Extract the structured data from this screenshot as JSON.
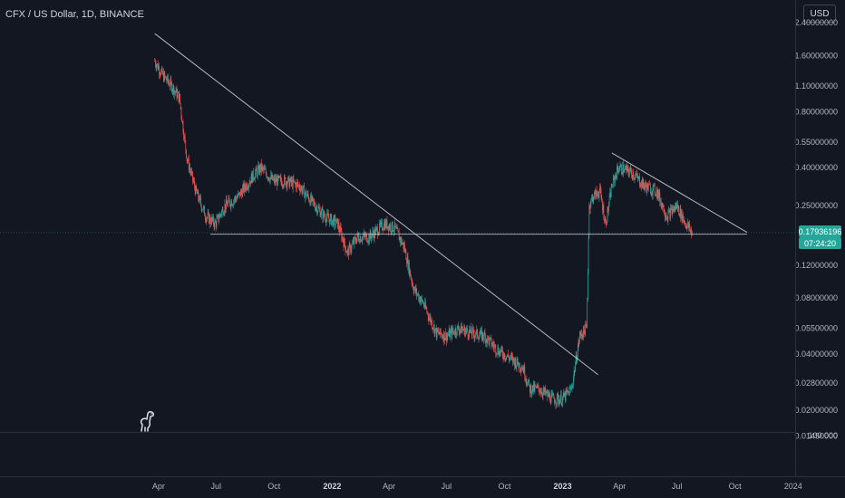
{
  "header": {
    "symbol_title": "CFX / US Dollar, 1D, BINANCE",
    "currency_button": "USD"
  },
  "price_tag": {
    "value": "0.17936196",
    "countdown": "07:24:20",
    "color": "#26a69a"
  },
  "colors": {
    "background": "#131722",
    "up": "#26a69a",
    "down": "#ef5350",
    "trendline": "#d1d4dc"
  },
  "icons": {
    "logo": "dinosaur-icon"
  },
  "chart_data": {
    "type": "candlestick",
    "scale": "log",
    "y_ticks": [
      "2.40000000",
      "1.60000000",
      "1.10000000",
      "0.80000000",
      "0.55000000",
      "0.40000000",
      "0.25000000",
      "0.12000000",
      "0.08000000",
      "0.05500000",
      "0.04000000",
      "0.02800000",
      "0.02000000",
      "0.01450000"
    ],
    "volume_label": "100.000",
    "x_ticks": [
      {
        "label": "Apr",
        "bold": false
      },
      {
        "label": "Jul",
        "bold": false
      },
      {
        "label": "Oct",
        "bold": false
      },
      {
        "label": "2022",
        "bold": true
      },
      {
        "label": "Apr",
        "bold": false
      },
      {
        "label": "Jul",
        "bold": false
      },
      {
        "label": "Oct",
        "bold": false
      },
      {
        "label": "2023",
        "bold": true
      },
      {
        "label": "Apr",
        "bold": false
      },
      {
        "label": "Jul",
        "bold": false
      },
      {
        "label": "Oct",
        "bold": false
      },
      {
        "label": "2024",
        "bold": false
      }
    ],
    "x_range": [
      "2021-03-15",
      "2024-01-20"
    ],
    "y_range": [
      0.0135,
      2.6
    ],
    "last_price": 0.17936196,
    "price_path": [
      [
        "2021-03-26",
        1.5
      ],
      [
        "2021-04-08",
        1.25
      ],
      [
        "2021-04-22",
        1.1
      ],
      [
        "2021-05-04",
        0.95
      ],
      [
        "2021-05-16",
        0.45
      ],
      [
        "2021-05-30",
        0.3
      ],
      [
        "2021-06-15",
        0.22
      ],
      [
        "2021-06-30",
        0.2
      ],
      [
        "2021-07-15",
        0.25
      ],
      [
        "2021-08-05",
        0.28
      ],
      [
        "2021-08-28",
        0.36
      ],
      [
        "2021-09-10",
        0.4
      ],
      [
        "2021-09-30",
        0.34
      ],
      [
        "2021-10-20",
        0.34
      ],
      [
        "2021-11-10",
        0.32
      ],
      [
        "2021-12-01",
        0.26
      ],
      [
        "2021-12-20",
        0.22
      ],
      [
        "2022-01-10",
        0.2
      ],
      [
        "2022-01-25",
        0.14
      ],
      [
        "2022-02-10",
        0.17
      ],
      [
        "2022-03-01",
        0.17
      ],
      [
        "2022-03-25",
        0.2
      ],
      [
        "2022-04-10",
        0.19
      ],
      [
        "2022-04-25",
        0.15
      ],
      [
        "2022-05-10",
        0.09
      ],
      [
        "2022-05-25",
        0.075
      ],
      [
        "2022-06-15",
        0.052
      ],
      [
        "2022-07-01",
        0.05
      ],
      [
        "2022-07-20",
        0.055
      ],
      [
        "2022-08-10",
        0.052
      ],
      [
        "2022-08-30",
        0.05
      ],
      [
        "2022-09-20",
        0.042
      ],
      [
        "2022-10-10",
        0.038
      ],
      [
        "2022-10-30",
        0.034
      ],
      [
        "2022-11-10",
        0.026
      ],
      [
        "2022-11-25",
        0.026
      ],
      [
        "2022-12-15",
        0.023
      ],
      [
        "2023-01-01",
        0.023
      ],
      [
        "2023-01-15",
        0.026
      ],
      [
        "2023-01-28",
        0.05
      ],
      [
        "2023-02-08",
        0.055
      ],
      [
        "2023-02-12",
        0.25
      ],
      [
        "2023-02-18",
        0.28
      ],
      [
        "2023-03-01",
        0.3
      ],
      [
        "2023-03-10",
        0.2
      ],
      [
        "2023-03-20",
        0.32
      ],
      [
        "2023-03-30",
        0.4
      ],
      [
        "2023-04-20",
        0.38
      ],
      [
        "2023-05-10",
        0.32
      ],
      [
        "2023-05-30",
        0.3
      ],
      [
        "2023-06-15",
        0.22
      ],
      [
        "2023-07-01",
        0.25
      ],
      [
        "2023-07-15",
        0.2
      ],
      [
        "2023-07-25",
        0.18
      ]
    ],
    "trendlines": [
      {
        "name": "major-descending-trendline",
        "from": [
          "2021-03-26",
          2.1
        ],
        "to": [
          "2023-02-26",
          0.031
        ]
      },
      {
        "name": "recent-descending-trendline",
        "from": [
          "2023-03-20",
          0.48
        ],
        "to": [
          "2023-10-20",
          0.18
        ]
      }
    ],
    "support_line": {
      "from": "2021-06-22",
      "to": "2023-10-20",
      "price": 0.176
    }
  }
}
